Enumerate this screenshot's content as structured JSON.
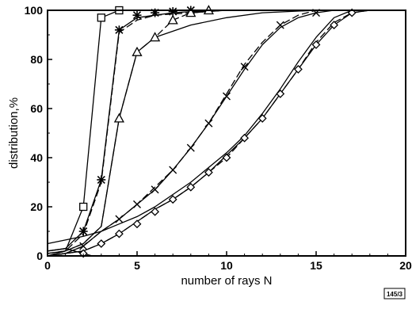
{
  "chart_data": {
    "type": "line",
    "xlabel": "number of rays N",
    "ylabel": "distribution,%",
    "xlim": [
      0,
      20
    ],
    "ylim": [
      0,
      100
    ],
    "xticks": [
      "0",
      "5",
      "10",
      "15",
      "20"
    ],
    "yticks": [
      "0",
      "20",
      "40",
      "60",
      "80",
      "100"
    ],
    "grid": false,
    "legend": "none",
    "stamp": "145/3",
    "series": [
      {
        "marker": "square",
        "solid": [
          [
            0,
            1
          ],
          [
            1,
            2
          ],
          [
            2,
            20
          ],
          [
            3,
            97
          ],
          [
            4,
            100
          ],
          [
            5,
            100
          ],
          [
            20,
            100
          ]
        ],
        "dashed": null,
        "markers": [
          [
            2,
            20
          ],
          [
            3,
            97
          ],
          [
            4,
            100
          ]
        ]
      },
      {
        "marker": "asterisk",
        "solid": [
          [
            0,
            2
          ],
          [
            1,
            3
          ],
          [
            2,
            10
          ],
          [
            3,
            31
          ],
          [
            4,
            92
          ],
          [
            5,
            97
          ],
          [
            6,
            98
          ],
          [
            7,
            99
          ],
          [
            8,
            99.5
          ],
          [
            10,
            100
          ],
          [
            20,
            100
          ]
        ],
        "dashed": [
          [
            0,
            1
          ],
          [
            1,
            2
          ],
          [
            2,
            9
          ],
          [
            3,
            30
          ],
          [
            4,
            91
          ],
          [
            5,
            96
          ],
          [
            6,
            98
          ],
          [
            8,
            99
          ],
          [
            10,
            100
          ],
          [
            20,
            100
          ]
        ],
        "markers": [
          [
            2,
            10
          ],
          [
            3,
            31
          ],
          [
            4,
            92
          ],
          [
            5,
            98
          ],
          [
            6,
            99
          ],
          [
            7,
            99.5
          ],
          [
            8,
            100
          ]
        ]
      },
      {
        "marker": "triangle",
        "solid": [
          [
            0,
            0
          ],
          [
            1,
            2
          ],
          [
            2,
            5
          ],
          [
            3,
            12
          ],
          [
            4,
            56
          ],
          [
            5,
            83
          ],
          [
            6,
            89
          ],
          [
            8,
            94
          ],
          [
            10,
            97
          ],
          [
            12,
            99
          ],
          [
            15,
            100
          ],
          [
            20,
            100
          ]
        ],
        "dashed": [
          [
            0,
            0
          ],
          [
            1,
            2
          ],
          [
            2,
            5
          ],
          [
            3,
            12
          ],
          [
            4,
            56
          ],
          [
            5,
            83
          ],
          [
            6,
            89
          ],
          [
            7,
            96
          ],
          [
            8,
            99
          ],
          [
            10,
            100
          ],
          [
            20,
            100
          ]
        ],
        "markers": [
          [
            4,
            56
          ],
          [
            5,
            83
          ],
          [
            6,
            89
          ],
          [
            7,
            96
          ],
          [
            8,
            99
          ],
          [
            9,
            100
          ]
        ]
      },
      {
        "marker": "x",
        "solid": [
          [
            0,
            0
          ],
          [
            1,
            1
          ],
          [
            2,
            4
          ],
          [
            3,
            10
          ],
          [
            4,
            15
          ],
          [
            5,
            21
          ],
          [
            6,
            27
          ],
          [
            7,
            35
          ],
          [
            8,
            44
          ],
          [
            9,
            54
          ],
          [
            10,
            65
          ],
          [
            11,
            76
          ],
          [
            12,
            86
          ],
          [
            13,
            93
          ],
          [
            14,
            97
          ],
          [
            15,
            99
          ],
          [
            16,
            100
          ],
          [
            20,
            100
          ]
        ],
        "dashed": [
          [
            0,
            0
          ],
          [
            1,
            1
          ],
          [
            2,
            4
          ],
          [
            3,
            10
          ],
          [
            4,
            15
          ],
          [
            5,
            21
          ],
          [
            6,
            28
          ],
          [
            7,
            35
          ],
          [
            8,
            44
          ],
          [
            9,
            54
          ],
          [
            10,
            66
          ],
          [
            11,
            78
          ],
          [
            12,
            87
          ],
          [
            13,
            94
          ],
          [
            14,
            98
          ],
          [
            15,
            100
          ],
          [
            20,
            100
          ]
        ],
        "markers": [
          [
            2,
            4
          ],
          [
            4,
            15
          ],
          [
            5,
            21
          ],
          [
            6,
            27
          ],
          [
            7,
            35
          ],
          [
            8,
            44
          ],
          [
            9,
            54
          ],
          [
            10,
            65
          ],
          [
            11,
            77
          ],
          [
            13,
            94
          ],
          [
            15,
            99
          ]
        ]
      },
      {
        "marker": "diamond",
        "solid": [
          [
            0,
            0
          ],
          [
            1,
            1
          ],
          [
            2,
            2
          ],
          [
            3,
            5
          ],
          [
            4,
            9
          ],
          [
            5,
            14
          ],
          [
            6,
            19
          ],
          [
            7,
            23
          ],
          [
            8,
            28
          ],
          [
            9,
            34
          ],
          [
            10,
            41
          ],
          [
            11,
            48
          ],
          [
            12,
            56
          ],
          [
            13,
            66
          ],
          [
            14,
            76
          ],
          [
            15,
            86
          ],
          [
            16,
            94
          ],
          [
            17,
            99
          ],
          [
            18,
            100
          ],
          [
            20,
            100
          ]
        ],
        "dashed": [
          [
            0,
            0
          ],
          [
            1,
            1
          ],
          [
            2,
            2
          ],
          [
            3,
            5
          ],
          [
            4,
            9
          ],
          [
            5,
            14
          ],
          [
            6,
            19
          ],
          [
            7,
            23
          ],
          [
            8,
            28
          ],
          [
            9,
            34
          ],
          [
            10,
            40
          ],
          [
            11,
            48
          ],
          [
            12,
            56
          ],
          [
            13,
            66
          ],
          [
            14,
            76
          ],
          [
            15,
            87
          ],
          [
            16,
            95
          ],
          [
            17,
            99
          ],
          [
            18,
            100
          ],
          [
            20,
            100
          ]
        ],
        "markers": [
          [
            2,
            1
          ],
          [
            3,
            5
          ],
          [
            4,
            9
          ],
          [
            5,
            13
          ],
          [
            6,
            18
          ],
          [
            7,
            23
          ],
          [
            8,
            28
          ],
          [
            9,
            34
          ],
          [
            10,
            40
          ],
          [
            11,
            48
          ],
          [
            12,
            56
          ],
          [
            13,
            66
          ],
          [
            14,
            76
          ],
          [
            15,
            86
          ],
          [
            16,
            94
          ],
          [
            17,
            99
          ]
        ]
      },
      {
        "marker": "none",
        "solid": [
          [
            0,
            5
          ],
          [
            1,
            6.5
          ],
          [
            2,
            8
          ],
          [
            3,
            10
          ],
          [
            4,
            13
          ],
          [
            5,
            16
          ],
          [
            6,
            20
          ],
          [
            7,
            25
          ],
          [
            8,
            30
          ],
          [
            9,
            36
          ],
          [
            10,
            42
          ],
          [
            11,
            49
          ],
          [
            12,
            58
          ],
          [
            13,
            68
          ],
          [
            14,
            79
          ],
          [
            15,
            89
          ],
          [
            16,
            97
          ],
          [
            17,
            100
          ],
          [
            20,
            100
          ]
        ],
        "dashed": null,
        "markers": []
      },
      {
        "marker": "none",
        "solid": [
          [
            0,
            2
          ],
          [
            0.5,
            2.5
          ],
          [
            1,
            3
          ],
          [
            1.5,
            2
          ],
          [
            2,
            1
          ],
          [
            2.5,
            0
          ]
        ],
        "dashed": null,
        "markers": []
      }
    ]
  }
}
